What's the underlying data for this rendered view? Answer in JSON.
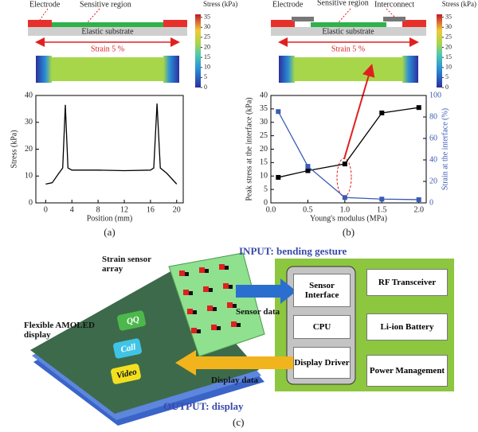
{
  "chart_data": [
    {
      "type": "line",
      "caption": "(a)",
      "xlabel": "Position (mm)",
      "ylabel": "Stress (kPa)",
      "x": [
        0,
        1,
        2,
        2.6,
        3,
        3.4,
        4,
        8,
        12,
        16,
        16.5,
        17,
        17.5,
        18.5,
        20
      ],
      "series": [
        {
          "color": "#000000",
          "values": [
            7,
            7.5,
            11,
            13,
            36.5,
            13,
            12.2,
            12.2,
            12,
            12.2,
            13,
            37,
            13,
            11,
            7
          ]
        }
      ],
      "xlim": [
        -1.5,
        21
      ],
      "xticks": [
        0,
        4,
        8,
        12,
        16,
        20
      ],
      "ylim": [
        0,
        40
      ],
      "yticks": [
        0,
        10,
        20,
        30,
        40
      ]
    },
    {
      "type": "line",
      "caption": "(b)",
      "xlabel": "Young's modulus (MPa)",
      "ylabel": "Peak stress at the interface (kPa)",
      "y2label": "Strain at the interface (%)",
      "x": [
        0.1,
        0.5,
        1.0,
        1.5,
        2.0
      ],
      "series": [
        {
          "color": "#000000",
          "marker": "square",
          "values": [
            9.5,
            12,
            14.5,
            33.5,
            35.5
          ]
        },
        {
          "color": "#3a5bb5",
          "marker": "square",
          "axis": "y2",
          "values": [
            85,
            34,
            5,
            3.5,
            3
          ]
        }
      ],
      "xlim": [
        0,
        2.1
      ],
      "xticks": [
        {
          "value": 0,
          "label": "0.0"
        },
        {
          "value": 0.5,
          "label": "0.5"
        },
        {
          "value": 1,
          "label": "1.0"
        },
        {
          "value": 1.5,
          "label": "1.5"
        },
        {
          "value": 2,
          "label": "2.0"
        }
      ],
      "ylim": [
        0,
        40
      ],
      "yticks": [
        0,
        5,
        10,
        15,
        20,
        25,
        30,
        35,
        40
      ],
      "y2lim": [
        0,
        100
      ],
      "y2ticks": [
        0,
        20,
        40,
        60,
        80,
        100
      ]
    }
  ],
  "schematic_a": {
    "electrode": "Electrode",
    "sensitive_region": "Sensitive region",
    "substrate": "Elastic substrate",
    "strain": "Strain 5 %",
    "colorbar": {
      "label": "Stress (kPa)",
      "ticks": [
        0,
        5,
        10,
        15,
        20,
        25,
        30,
        35
      ]
    }
  },
  "schematic_b": {
    "electrode": "Electrode",
    "sensitive_region": "Sensitive region",
    "interconnect": "Interconnect",
    "substrate": "Elastic substrate",
    "strain": "Strain 5 %",
    "colorbar": {
      "label": "Stress (kPa)",
      "ticks": [
        0,
        5,
        10,
        15,
        20,
        25,
        30,
        35
      ]
    }
  },
  "diagram": {
    "strain_sensor": "Strain sensor array",
    "input": "INPUT: bending gesture",
    "display": "Flexible AMOLED display",
    "sensor_data": "Sensor data",
    "display_data": "Display data",
    "output": "OUTPUT: display",
    "sensor_interface": "Sensor Interface",
    "cpu": "CPU",
    "display_driver": "Display Driver",
    "rf": "RF Transceiver",
    "battery": "Li-ion Battery",
    "power": "Power Management",
    "app_qq": "QQ",
    "app_call": "Call",
    "app_video": "Video",
    "caption": "(c)"
  }
}
